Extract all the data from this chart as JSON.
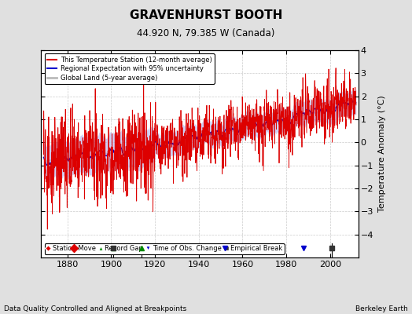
{
  "title": "GRAVENHURST BOOTH",
  "subtitle": "44.920 N, 79.385 W (Canada)",
  "ylabel": "Temperature Anomaly (°C)",
  "xlabel_left": "Data Quality Controlled and Aligned at Breakpoints",
  "xlabel_right": "Berkeley Earth",
  "ylim": [
    -5,
    4
  ],
  "xlim": [
    1868,
    2013
  ],
  "yticks": [
    -4,
    -3,
    -2,
    -1,
    0,
    1,
    2,
    3,
    4
  ],
  "xticks": [
    1880,
    1900,
    1920,
    1940,
    1960,
    1980,
    2000
  ],
  "bg_color": "#e0e0e0",
  "plot_bg_color": "#ffffff",
  "legend_items": [
    {
      "label": "This Temperature Station (12-month average)",
      "color": "#dd0000",
      "lw": 1.2
    },
    {
      "label": "Regional Expectation with 95% uncertainty",
      "color": "#0000cc",
      "lw": 1.2
    },
    {
      "label": "Global Land (5-year average)",
      "color": "#bbbbbb",
      "lw": 2.0
    }
  ],
  "seed": 42
}
